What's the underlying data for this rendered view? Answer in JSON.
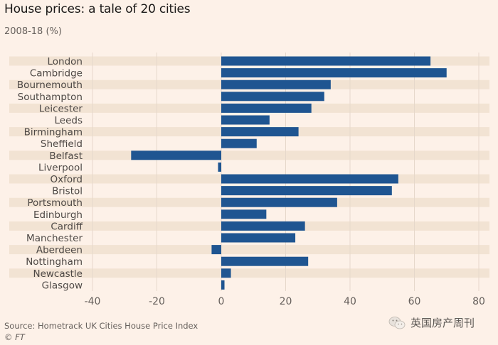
{
  "header": {
    "title": "House prices: a tale of 20 cities",
    "subtitle": "2008-18 (%)"
  },
  "footer": {
    "source": "Source: Hometrack UK Cities House Price Index",
    "copyright": "© FT",
    "watermark": "英国房产周刊",
    "watermark_icon": "wechat-icon"
  },
  "colors": {
    "bar": "#1f5591",
    "band": "#f2e3d3",
    "background": "#fdf1e8",
    "grid": "#e6d8cb"
  },
  "chart_data": {
    "type": "bar",
    "orientation": "horizontal",
    "title": "House prices: a tale of 20 cities",
    "subtitle": "2008-18 (%)",
    "xlabel": "",
    "ylabel": "",
    "categories": [
      "London",
      "Cambridge",
      "Bournemouth",
      "Southampton",
      "Leicester",
      "Leeds",
      "Birmingham",
      "Sheffield",
      "Belfast",
      "Liverpool",
      "Oxford",
      "Bristol",
      "Portsmouth",
      "Edinburgh",
      "Cardiff",
      "Manchester",
      "Aberdeen",
      "Nottingham",
      "Newcastle",
      "Glasgow"
    ],
    "values": [
      65,
      70,
      34,
      32,
      28,
      15,
      24,
      11,
      -28,
      -1,
      55,
      53,
      36,
      14,
      26,
      23,
      -3,
      27,
      3,
      1
    ],
    "xlim": [
      -40,
      80
    ],
    "xticks": [
      -40,
      -20,
      0,
      20,
      40,
      60,
      80
    ],
    "xtick_labels": [
      "-40",
      "-20",
      "0",
      "20",
      "40",
      "60",
      "80"
    ],
    "grid": true,
    "alternating_row_bands": true,
    "legend": "none"
  }
}
